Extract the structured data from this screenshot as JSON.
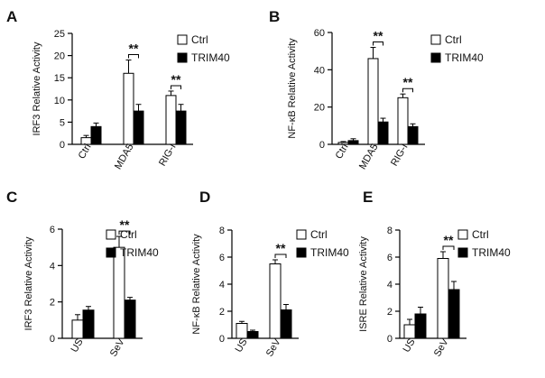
{
  "chart_data": [
    {
      "type": "bar",
      "panel": "A",
      "ylabel": "IRF3 Relative Activity",
      "ylim": [
        0,
        25
      ],
      "yticks": [
        0,
        5,
        10,
        15,
        20,
        25
      ],
      "categories": [
        "Ctrl",
        "MDA5",
        "RIG-I"
      ],
      "series": [
        {
          "name": "Ctrl",
          "values": [
            1.5,
            16,
            11
          ],
          "errors": [
            0.5,
            3,
            1
          ]
        },
        {
          "name": "TRIM40",
          "values": [
            4,
            7.5,
            7.5
          ],
          "errors": [
            0.8,
            1.5,
            1.5
          ]
        }
      ],
      "significance": [
        {
          "category": "MDA5",
          "label": "**"
        },
        {
          "category": "RIG-I",
          "label": "**"
        }
      ],
      "legend": [
        "Ctrl",
        "TRIM40"
      ]
    },
    {
      "type": "bar",
      "panel": "B",
      "ylabel": "NF-κB Relative Activity",
      "ylim": [
        0,
        60
      ],
      "yticks": [
        0,
        20,
        40,
        60
      ],
      "categories": [
        "Ctrl",
        "MDA5",
        "RIG-I"
      ],
      "series": [
        {
          "name": "Ctrl",
          "values": [
            1,
            46,
            25
          ],
          "errors": [
            0.5,
            6,
            2
          ]
        },
        {
          "name": "TRIM40",
          "values": [
            2,
            12,
            9.5
          ],
          "errors": [
            1,
            2,
            1.5
          ]
        }
      ],
      "significance": [
        {
          "category": "MDA5",
          "label": "**"
        },
        {
          "category": "RIG-I",
          "label": "**"
        }
      ],
      "legend": [
        "Ctrl",
        "TRIM40"
      ]
    },
    {
      "type": "bar",
      "panel": "C",
      "ylabel": "IRF3 Relative Activity",
      "ylim": [
        0,
        6
      ],
      "yticks": [
        0,
        2,
        4,
        6
      ],
      "categories": [
        "US",
        "SeV"
      ],
      "series": [
        {
          "name": "Ctrl",
          "values": [
            1,
            5
          ],
          "errors": [
            0.3,
            0.6
          ]
        },
        {
          "name": "TRIM40",
          "values": [
            1.55,
            2.1
          ],
          "errors": [
            0.2,
            0.15
          ]
        }
      ],
      "significance": [
        {
          "category": "SeV",
          "label": "**"
        }
      ],
      "legend": [
        "Ctrl",
        "TRIM40"
      ]
    },
    {
      "type": "bar",
      "panel": "D",
      "ylabel": "NF-κB Relative Activity",
      "ylim": [
        0,
        8
      ],
      "yticks": [
        0,
        2,
        4,
        6,
        8
      ],
      "categories": [
        "US",
        "SeV"
      ],
      "series": [
        {
          "name": "Ctrl",
          "values": [
            1.1,
            5.5
          ],
          "errors": [
            0.15,
            0.3
          ]
        },
        {
          "name": "TRIM40",
          "values": [
            0.5,
            2.1
          ],
          "errors": [
            0.1,
            0.4
          ]
        }
      ],
      "significance": [
        {
          "category": "SeV",
          "label": "**"
        }
      ],
      "legend": [
        "Ctrl",
        "TRIM40"
      ]
    },
    {
      "type": "bar",
      "panel": "E",
      "ylabel": "ISRE Relative Activity",
      "ylim": [
        0,
        8
      ],
      "yticks": [
        0,
        2,
        4,
        6,
        8
      ],
      "categories": [
        "US",
        "SeV"
      ],
      "series": [
        {
          "name": "Ctrl",
          "values": [
            1,
            5.9
          ],
          "errors": [
            0.4,
            0.5
          ]
        },
        {
          "name": "TRIM40",
          "values": [
            1.8,
            3.6
          ],
          "errors": [
            0.5,
            0.6
          ]
        }
      ],
      "significance": [
        {
          "category": "SeV",
          "label": "**"
        }
      ],
      "legend": [
        "Ctrl",
        "TRIM40"
      ]
    }
  ],
  "colors": {
    "ctrl_fill": "#ffffff",
    "trim40_fill": "#000000",
    "stroke": "#000000"
  }
}
